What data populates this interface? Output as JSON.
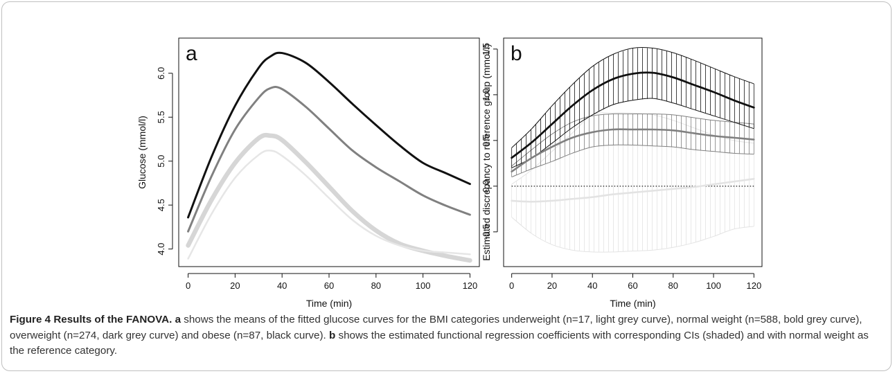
{
  "figure": {
    "caption_label": "Figure 4",
    "caption_title": "Results of the FANOVA.",
    "caption_a_letter": "a",
    "caption_a_text": "shows the means of the fitted glucose curves for the BMI categories underweight (n=17, light grey curve), normal weight (n=588, bold grey curve), overweight (n=274, dark grey curve) and obese (n=87, black curve).",
    "caption_b_letter": "b",
    "caption_b_text": "shows the estimated functional regression coefficients with corresponding CIs (shaded) and with normal weight as the reference category."
  },
  "chart_data": [
    {
      "type": "line",
      "panel_label": "a",
      "xlabel": "Time (min)",
      "ylabel": "Glucose (mmol/l)",
      "xlim": [
        -4,
        124
      ],
      "ylim": [
        3.8,
        6.4
      ],
      "xticks": [
        0,
        20,
        40,
        60,
        80,
        100,
        120
      ],
      "yticks": [
        4.0,
        4.5,
        5.0,
        5.5,
        6.0
      ],
      "grid": false,
      "legend": "none",
      "x": [
        0,
        10,
        20,
        30,
        35,
        40,
        50,
        60,
        70,
        80,
        90,
        100,
        110,
        120
      ],
      "series": [
        {
          "color": "#111111",
          "width": 3.0,
          "values": [
            4.36,
            5.05,
            5.63,
            6.06,
            6.19,
            6.23,
            6.12,
            5.9,
            5.65,
            5.41,
            5.18,
            4.98,
            4.86,
            4.74
          ]
        },
        {
          "color": "#808080",
          "width": 3.0,
          "values": [
            4.2,
            4.83,
            5.36,
            5.72,
            5.83,
            5.82,
            5.62,
            5.37,
            5.12,
            4.93,
            4.77,
            4.61,
            4.49,
            4.39
          ]
        },
        {
          "color": "#d6d6d6",
          "width": 6.5,
          "values": [
            4.04,
            4.56,
            4.98,
            5.26,
            5.29,
            5.24,
            4.99,
            4.71,
            4.43,
            4.21,
            4.06,
            3.98,
            3.92,
            3.87
          ]
        },
        {
          "color": "#e6e6e6",
          "width": 2.5,
          "values": [
            3.89,
            4.4,
            4.81,
            5.07,
            5.12,
            5.06,
            4.84,
            4.58,
            4.33,
            4.15,
            4.04,
            3.98,
            3.96,
            3.94
          ]
        }
      ]
    },
    {
      "type": "line",
      "panel_label": "b",
      "xlabel": "Time (min)",
      "ylabel": "Estimated discrepancy to reference group (mmol/l)",
      "xlim": [
        -4,
        124
      ],
      "ylim": [
        -0.88,
        1.62
      ],
      "xticks": [
        0,
        20,
        40,
        60,
        80,
        100,
        120
      ],
      "yticks": [
        -0.5,
        0.0,
        0.5,
        1.0,
        1.5
      ],
      "grid": false,
      "legend": "none",
      "reference_line": 0,
      "x": [
        0,
        10,
        20,
        30,
        40,
        50,
        60,
        70,
        80,
        90,
        100,
        110,
        120
      ],
      "series": [
        {
          "color": "#111111",
          "width": 2.8,
          "values": [
            0.31,
            0.48,
            0.68,
            0.88,
            1.05,
            1.17,
            1.23,
            1.24,
            1.19,
            1.11,
            1.03,
            0.94,
            0.86
          ],
          "ci_lower": [
            0.2,
            0.31,
            0.47,
            0.64,
            0.78,
            0.89,
            0.94,
            0.96,
            0.91,
            0.84,
            0.77,
            0.7,
            0.63
          ],
          "ci_upper": [
            0.42,
            0.63,
            0.88,
            1.11,
            1.31,
            1.44,
            1.51,
            1.51,
            1.46,
            1.38,
            1.29,
            1.2,
            1.12
          ]
        },
        {
          "color": "#808080",
          "width": 2.6,
          "values": [
            0.16,
            0.31,
            0.43,
            0.53,
            0.59,
            0.62,
            0.62,
            0.62,
            0.61,
            0.58,
            0.55,
            0.53,
            0.51
          ],
          "ci_lower": [
            0.1,
            0.19,
            0.27,
            0.36,
            0.43,
            0.45,
            0.45,
            0.44,
            0.43,
            0.4,
            0.38,
            0.36,
            0.35
          ],
          "ci_upper": [
            0.22,
            0.4,
            0.57,
            0.7,
            0.77,
            0.79,
            0.79,
            0.79,
            0.78,
            0.75,
            0.72,
            0.7,
            0.68
          ]
        },
        {
          "color": "#e3e3e3",
          "width": 2.6,
          "values": [
            -0.16,
            -0.17,
            -0.16,
            -0.14,
            -0.12,
            -0.09,
            -0.07,
            -0.05,
            -0.03,
            -0.01,
            0.02,
            0.05,
            0.08
          ],
          "ci_lower": [
            -0.34,
            -0.52,
            -0.64,
            -0.7,
            -0.72,
            -0.72,
            -0.71,
            -0.7,
            -0.67,
            -0.62,
            -0.55,
            -0.47,
            -0.44
          ],
          "ci_upper": [
            0.02,
            0.18,
            0.38,
            0.58,
            0.78,
            0.8,
            0.8,
            0.78,
            0.72,
            0.64,
            0.56,
            0.5,
            0.47
          ]
        }
      ]
    }
  ]
}
